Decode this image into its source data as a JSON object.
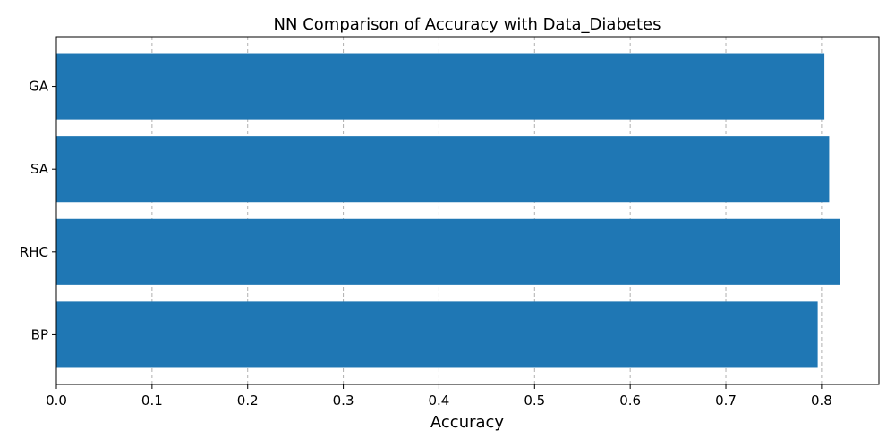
{
  "chart_data": {
    "type": "bar",
    "orientation": "horizontal",
    "title": "NN Comparison of Accuracy with Data_Diabetes",
    "xlabel": "Accuracy",
    "ylabel": "",
    "categories": [
      "GA",
      "SA",
      "RHC",
      "BP"
    ],
    "values": [
      0.803,
      0.808,
      0.819,
      0.796
    ],
    "xlim": [
      0.0,
      0.86
    ],
    "xticks": [
      "0.0",
      "0.1",
      "0.2",
      "0.3",
      "0.4",
      "0.5",
      "0.6",
      "0.7",
      "0.8"
    ],
    "grid": "x-dashed",
    "bar_color": "#1f77b4",
    "grid_color": "#b0b0b0"
  }
}
